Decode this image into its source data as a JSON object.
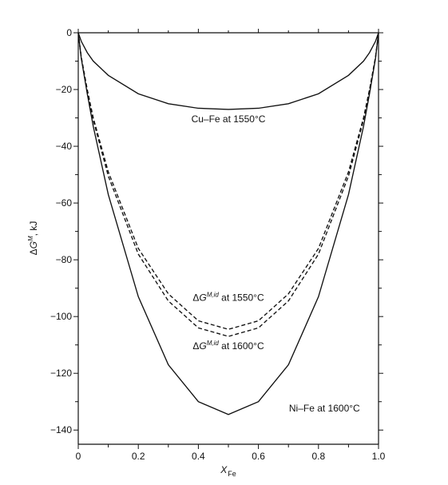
{
  "chart_data": {
    "type": "line",
    "xlabel": {
      "main": "X",
      "sub": "Fe"
    },
    "ylabel": {
      "prefix": "Δ",
      "main": "G",
      "sup": "M",
      "suffix": ", kJ"
    },
    "xlim": [
      0,
      1.0
    ],
    "ylim": [
      -145,
      0
    ],
    "x_ticks": [
      0,
      0.2,
      0.4,
      0.6,
      0.8,
      1.0
    ],
    "x_tick_labels": [
      "0",
      "0.2",
      "0.4",
      "0.6",
      "0.8",
      "1.0"
    ],
    "y_ticks": [
      0,
      -20,
      -40,
      -60,
      -80,
      -100,
      -120,
      -140
    ],
    "y_tick_labels": [
      "0",
      "−20",
      "−40",
      "−60",
      "−80",
      "−100",
      "−120",
      "−140"
    ],
    "grid": false,
    "series": [
      {
        "id": "cu-fe",
        "style": "solid",
        "x": [
          0,
          0.01,
          0.03,
          0.05,
          0.1,
          0.2,
          0.3,
          0.4,
          0.5,
          0.6,
          0.7,
          0.8,
          0.9,
          0.95,
          0.97,
          0.99,
          1.0
        ],
        "values": [
          0,
          -3.0,
          -7.0,
          -10.0,
          -15.0,
          -21.5,
          -25.0,
          -26.6,
          -27.0,
          -26.6,
          -25.0,
          -21.5,
          -15.0,
          -10.0,
          -7.0,
          -3.0,
          0
        ]
      },
      {
        "id": "ideal-1550",
        "style": "dashed",
        "x": [
          0,
          0.01,
          0.03,
          0.05,
          0.1,
          0.2,
          0.3,
          0.4,
          0.5,
          0.6,
          0.7,
          0.8,
          0.9,
          0.95,
          0.97,
          0.99,
          1.0
        ],
        "values": [
          0,
          -8.5,
          -20.0,
          -30.0,
          -49.0,
          -76.0,
          -92.0,
          -101.5,
          -104.5,
          -101.5,
          -92.0,
          -76.0,
          -49.0,
          -30.0,
          -20.0,
          -8.5,
          0
        ]
      },
      {
        "id": "ideal-1600",
        "style": "dashed",
        "x": [
          0,
          0.01,
          0.03,
          0.05,
          0.1,
          0.2,
          0.3,
          0.4,
          0.5,
          0.6,
          0.7,
          0.8,
          0.9,
          0.95,
          0.97,
          0.99,
          1.0
        ],
        "values": [
          0,
          -8.8,
          -20.5,
          -30.8,
          -50.5,
          -78.0,
          -94.5,
          -104.0,
          -107.0,
          -104.0,
          -94.5,
          -78.0,
          -50.5,
          -30.8,
          -20.5,
          -8.8,
          0
        ]
      },
      {
        "id": "ni-fe",
        "style": "solid",
        "x": [
          0,
          0.01,
          0.03,
          0.05,
          0.1,
          0.2,
          0.3,
          0.4,
          0.5,
          0.6,
          0.7,
          0.8,
          0.9,
          0.95,
          0.97,
          0.99,
          1.0
        ],
        "values": [
          0,
          -9.0,
          -21.5,
          -33.0,
          -57.0,
          -93.0,
          -117.0,
          -130.0,
          -134.5,
          -130.0,
          -117.0,
          -93.0,
          -57.0,
          -33.0,
          -21.5,
          -9.0,
          0
        ]
      }
    ],
    "annotations": [
      {
        "id": "cu-fe-label",
        "parts": [
          {
            "text": "Cu–Fe at 1550°C"
          }
        ],
        "x": 0.5,
        "y": -31.5
      },
      {
        "id": "ideal-1550-label",
        "parts": [
          {
            "text": "Δ"
          },
          {
            "text": "G",
            "style": "italic"
          },
          {
            "text": "M,id",
            "sup": true
          },
          {
            "text": " at 1550°C"
          }
        ],
        "x": 0.5,
        "y": -94.5
      },
      {
        "id": "ideal-1600-label",
        "parts": [
          {
            "text": "Δ"
          },
          {
            "text": "G",
            "style": "italic"
          },
          {
            "text": "M,id",
            "sup": true
          },
          {
            "text": " at 1600°C"
          }
        ],
        "x": 0.5,
        "y": -111.5
      },
      {
        "id": "ni-fe-label",
        "parts": [
          {
            "text": "Ni–Fe at 1600°C"
          }
        ],
        "x": 0.82,
        "y": -133.5
      }
    ]
  }
}
